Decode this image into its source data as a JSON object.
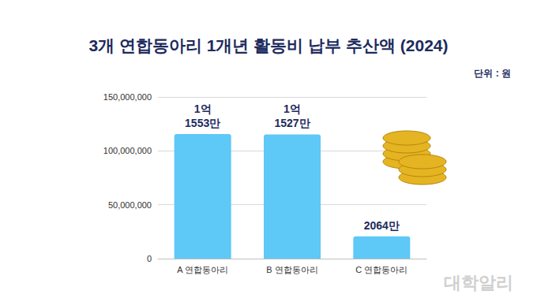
{
  "chart_data": {
    "type": "bar",
    "title": "3개 연합동아리 1개년 활동비 납부 추산액 (2024)",
    "subtitle": "단위 : 원",
    "categories": [
      "A 연합동아리",
      "B 연합동아리",
      "C 연합동아리"
    ],
    "values": [
      115530000,
      115270000,
      20640000
    ],
    "value_labels": [
      "1억\n1553만",
      "1억\n1527만",
      "2064만"
    ],
    "color": "#5ec8f7",
    "ylim": [
      0,
      150000000
    ],
    "yticks": [
      0,
      {
        "value": 50000000,
        "label": "50,000,000"
      },
      {
        "value": 100000000,
        "label": "100,000,000"
      },
      {
        "value": 150000000,
        "label": "150,000,000"
      }
    ],
    "grid": true,
    "data_labels": true,
    "annotations": [
      "대학알리"
    ]
  }
}
